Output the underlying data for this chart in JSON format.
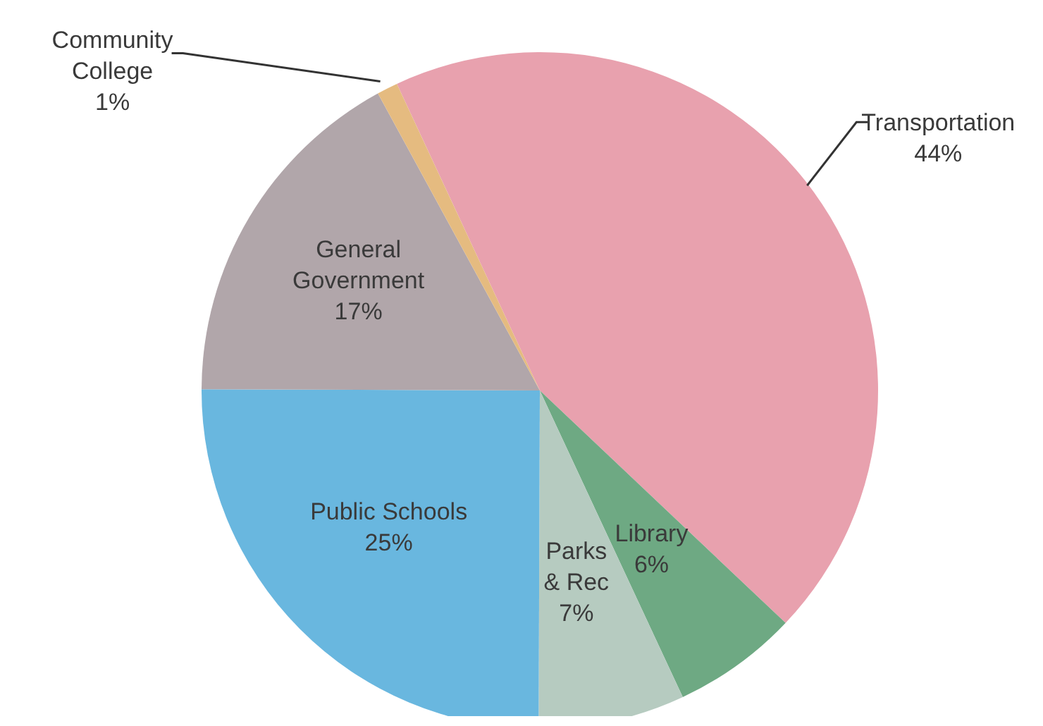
{
  "chart_data": {
    "type": "pie",
    "categories": [
      "Transportation",
      "Library",
      "Parks & Rec",
      "Public Schools",
      "General Government",
      "Community College"
    ],
    "values": [
      44,
      6,
      7,
      25,
      17,
      1
    ],
    "colors": [
      "#e8a1ae",
      "#6ea983",
      "#b6cbc0",
      "#69b7df",
      "#b1a6aa",
      "#e5bb80"
    ],
    "value_labels": [
      "44%",
      "6%",
      "7%",
      "25%",
      "17%",
      "1%"
    ],
    "legend": false
  }
}
